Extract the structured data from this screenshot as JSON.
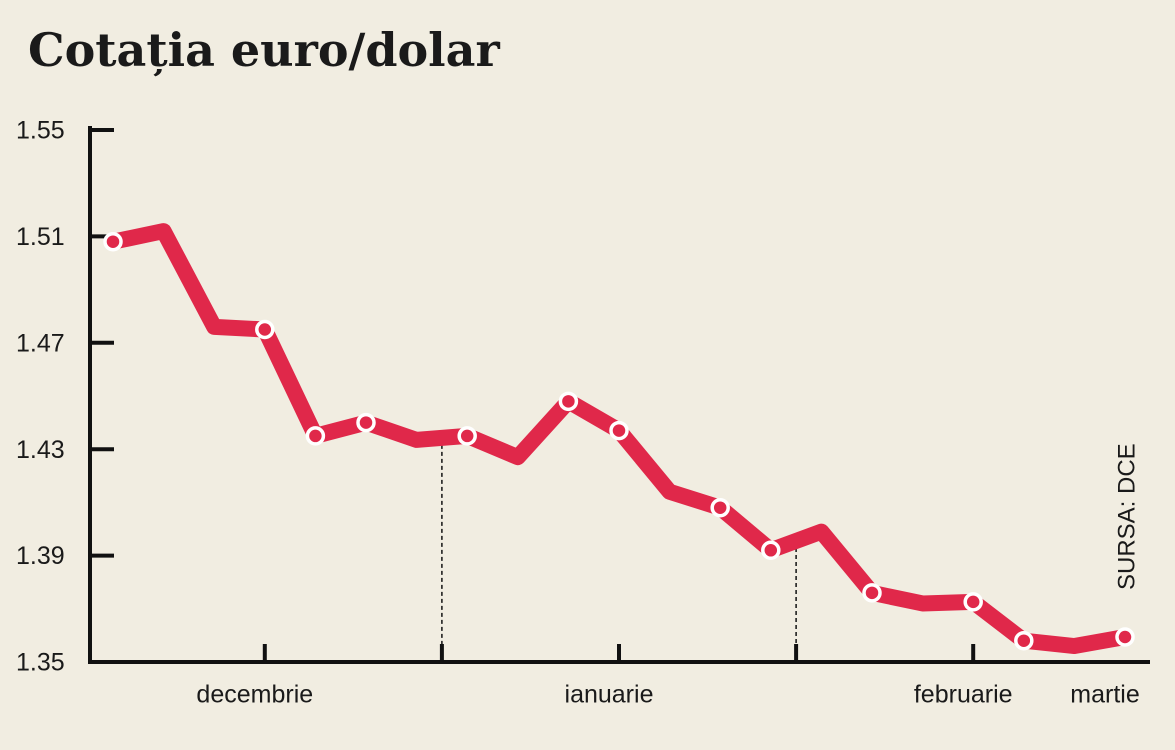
{
  "chart_data": {
    "type": "line",
    "title": "Cotația euro/dolar",
    "categories": [
      null,
      null,
      null,
      "decembrie",
      null,
      null,
      null,
      null,
      null,
      null,
      "ianuarie",
      null,
      null,
      null,
      null,
      null,
      null,
      "februarie",
      null,
      null,
      "martie"
    ],
    "values": [
      1.508,
      1.512,
      1.476,
      1.475,
      1.435,
      1.44,
      1.4335,
      1.435,
      1.427,
      1.448,
      1.437,
      1.414,
      1.408,
      1.392,
      1.399,
      1.376,
      1.372,
      1.3726,
      1.358,
      1.356,
      1.3594
    ],
    "markers": [
      true,
      false,
      false,
      true,
      true,
      true,
      false,
      true,
      false,
      true,
      true,
      false,
      true,
      true,
      false,
      true,
      false,
      true,
      true,
      false,
      true
    ],
    "color": "#e0284a",
    "ylim": [
      1.35,
      1.55
    ],
    "yticks": [
      1.35,
      1.39,
      1.43,
      1.47,
      1.51,
      1.55
    ],
    "source": "SURSA: DCE"
  }
}
